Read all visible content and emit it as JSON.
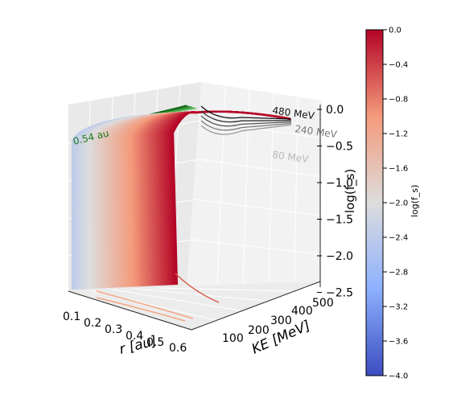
{
  "chart_data": {
    "type": "surface3d",
    "zlabel": "log(f_s)",
    "xlabel": "r [au]",
    "ylabel": "KE [MeV]",
    "x_ticks": [
      "0.1",
      "0.2",
      "0.3",
      "0.4",
      "0.5",
      "0.6"
    ],
    "y_ticks": [
      "100",
      "200",
      "300",
      "400",
      "500"
    ],
    "z_ticks": [
      "0.0",
      "−0.5",
      "−1.0",
      "−1.5",
      "−2.0",
      "−2.5"
    ],
    "xlim": [
      0.1,
      0.65
    ],
    "ylim": [
      0,
      500
    ],
    "zlim": [
      -2.5,
      0.0
    ],
    "annotations": [
      {
        "text": "0.54 au",
        "color": "#1a7a1a"
      },
      {
        "text": "480 MeV",
        "color": "#111111"
      },
      {
        "text": "240 MeV",
        "color": "#777777"
      },
      {
        "text": "80 MeV",
        "color": "#b8b8b8"
      }
    ],
    "colorbar": {
      "label": "log(f_s)",
      "cmap": "coolwarm",
      "range": [
        -4.0,
        0.0
      ],
      "ticks": [
        "0.0",
        "−0.4",
        "−0.8",
        "−1.2",
        "−1.6",
        "−2.0",
        "−2.4",
        "−2.8",
        "−3.2",
        "−3.6",
        "−4.0"
      ]
    },
    "series": [
      {
        "name": "0.54 au",
        "x": 0.54,
        "y": [
          5,
          10,
          20,
          40,
          80,
          160,
          240,
          320,
          400,
          480
        ],
        "z": [
          -2.4,
          -2.2,
          -1.7,
          -0.9,
          -0.35,
          -0.15,
          -0.08,
          -0.05,
          -0.02,
          0.0
        ]
      },
      {
        "name": "480 MeV",
        "y": 480,
        "x": [
          0.1,
          0.2,
          0.3,
          0.4,
          0.5,
          0.6
        ],
        "z": [
          -0.15,
          -0.1,
          -0.06,
          -0.04,
          -0.02,
          0.0
        ]
      },
      {
        "name": "240 MeV",
        "y": 240,
        "x": [
          0.1,
          0.2,
          0.3,
          0.4,
          0.5,
          0.6
        ],
        "z": [
          -0.25,
          -0.2,
          -0.16,
          -0.13,
          -0.11,
          -0.1
        ]
      },
      {
        "name": "80 MeV",
        "y": 80,
        "x": [
          0.1,
          0.2,
          0.3,
          0.4,
          0.5,
          0.6
        ],
        "z": [
          -0.55,
          -0.48,
          -0.42,
          -0.37,
          -0.33,
          -0.3
        ]
      }
    ]
  }
}
